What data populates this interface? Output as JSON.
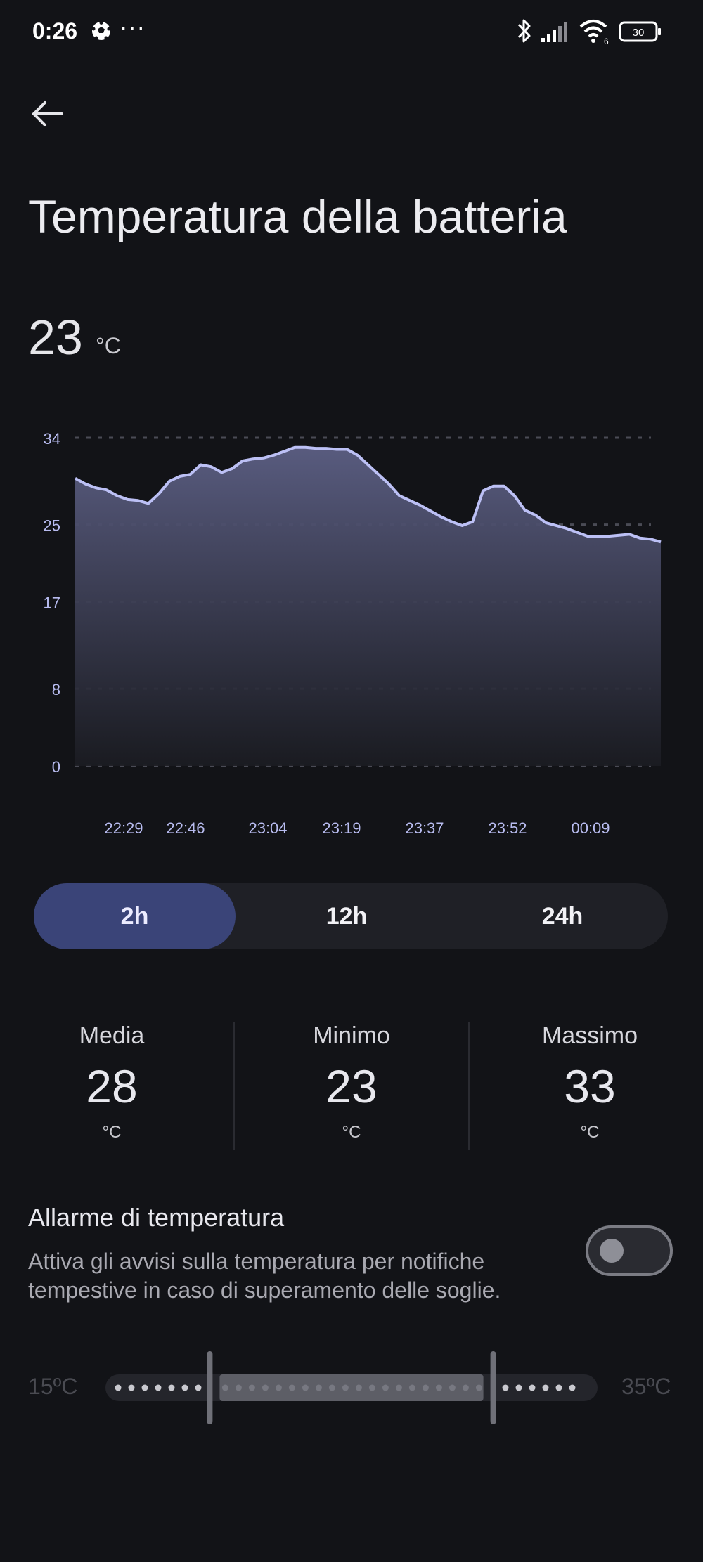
{
  "status_bar": {
    "time": "0:26",
    "dots": "···",
    "network_gen": "6",
    "battery_level": "30"
  },
  "page": {
    "title": "Temperatura della batteria",
    "current_value": "23",
    "current_unit": "°C"
  },
  "chart_data": {
    "type": "area",
    "y_ticks": [
      "34",
      "25",
      "17",
      "8",
      "0"
    ],
    "x_tick_labels": [
      "22:29",
      "22:46",
      "23:04",
      "23:19",
      "23:37",
      "23:52",
      "00:09"
    ],
    "ylim": [
      0,
      34
    ],
    "grid": true,
    "series": [
      {
        "values": [
          29.8,
          29.2,
          28.8,
          28.6,
          28.0,
          27.6,
          27.5,
          27.2,
          28.2,
          29.5,
          30.0,
          30.2,
          31.2,
          31.0,
          30.4,
          30.8,
          31.6,
          31.8,
          31.9,
          32.2,
          32.6,
          33.0,
          33.0,
          32.9,
          32.9,
          32.8,
          32.8,
          32.2,
          31.2,
          30.2,
          29.2,
          28.0,
          27.5,
          27.0,
          26.4,
          25.8,
          25.3,
          24.9,
          25.3,
          28.5,
          29.0,
          29.0,
          28.0,
          26.5,
          26.0,
          25.2,
          24.9,
          24.6,
          24.2,
          23.8,
          23.8,
          23.8,
          23.9,
          24.0,
          23.6,
          23.5,
          23.2
        ]
      }
    ],
    "line_color": "#bcc0f5"
  },
  "range_tabs": [
    {
      "label": "2h",
      "active": true
    },
    {
      "label": "12h",
      "active": false
    },
    {
      "label": "24h",
      "active": false
    }
  ],
  "stats": {
    "avg": {
      "label": "Media",
      "value": "28",
      "unit": "°C"
    },
    "min": {
      "label": "Minimo",
      "value": "23",
      "unit": "°C"
    },
    "max": {
      "label": "Massimo",
      "value": "33",
      "unit": "°C"
    }
  },
  "alarm": {
    "title": "Allarme di temperatura",
    "description": "Attiva gli avvisi sulla temperatura per notifiche tempestive in caso di superamento delle soglie.",
    "enabled": false
  },
  "threshold_slider": {
    "min_label": "15ºC",
    "max_label": "35ºC",
    "range_min": 15,
    "range_max": 35,
    "low_value": 19,
    "high_value": 31
  },
  "colors": {
    "background": "#121317",
    "accent": "#3a4478",
    "chart_line": "#bcc0f5"
  }
}
